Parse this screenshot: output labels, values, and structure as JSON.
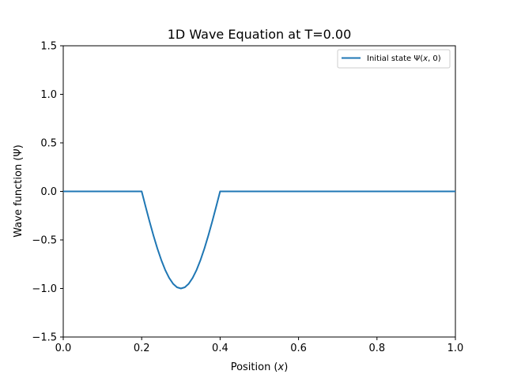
{
  "chart_data": {
    "type": "line",
    "title": "1D Wave Equation at T=0.00",
    "xlabel_prefix": "Position (",
    "xlabel_var": "x",
    "xlabel_suffix": ")",
    "ylabel": "Wave function (Ψ)",
    "xlim": [
      0.0,
      1.0
    ],
    "ylim": [
      -1.5,
      1.5
    ],
    "x_ticks": [
      0.0,
      0.2,
      0.4,
      0.6,
      0.8,
      1.0
    ],
    "x_tick_labels": [
      "0.0",
      "0.2",
      "0.4",
      "0.6",
      "0.8",
      "1.0"
    ],
    "y_ticks": [
      1.5,
      1.0,
      0.5,
      0.0,
      -0.5,
      -1.0,
      -1.5
    ],
    "y_tick_labels": [
      "1.5",
      "1.0",
      "0.5",
      "0.0",
      "−0.5",
      "−1.0",
      "−1.5"
    ],
    "grid": false,
    "legend_position": "top-right",
    "series": [
      {
        "name_prefix": "Initial state Ψ(",
        "name_var": "x",
        "name_suffix": ", 0)",
        "color": "#1f77b4",
        "x": [
          0.0,
          0.1,
          0.2,
          0.21,
          0.22,
          0.23,
          0.24,
          0.25,
          0.26,
          0.27,
          0.28,
          0.29,
          0.3,
          0.31,
          0.32,
          0.33,
          0.34,
          0.35,
          0.36,
          0.37,
          0.38,
          0.39,
          0.4,
          0.5,
          0.6,
          0.7,
          0.8,
          0.9,
          1.0
        ],
        "y": [
          0.0,
          0.0,
          0.0,
          -0.156,
          -0.309,
          -0.454,
          -0.588,
          -0.707,
          -0.809,
          -0.891,
          -0.951,
          -0.988,
          -1.0,
          -0.988,
          -0.951,
          -0.891,
          -0.809,
          -0.707,
          -0.588,
          -0.454,
          -0.309,
          -0.156,
          0.0,
          0.0,
          0.0,
          0.0,
          0.0,
          0.0,
          0.0
        ]
      }
    ]
  }
}
